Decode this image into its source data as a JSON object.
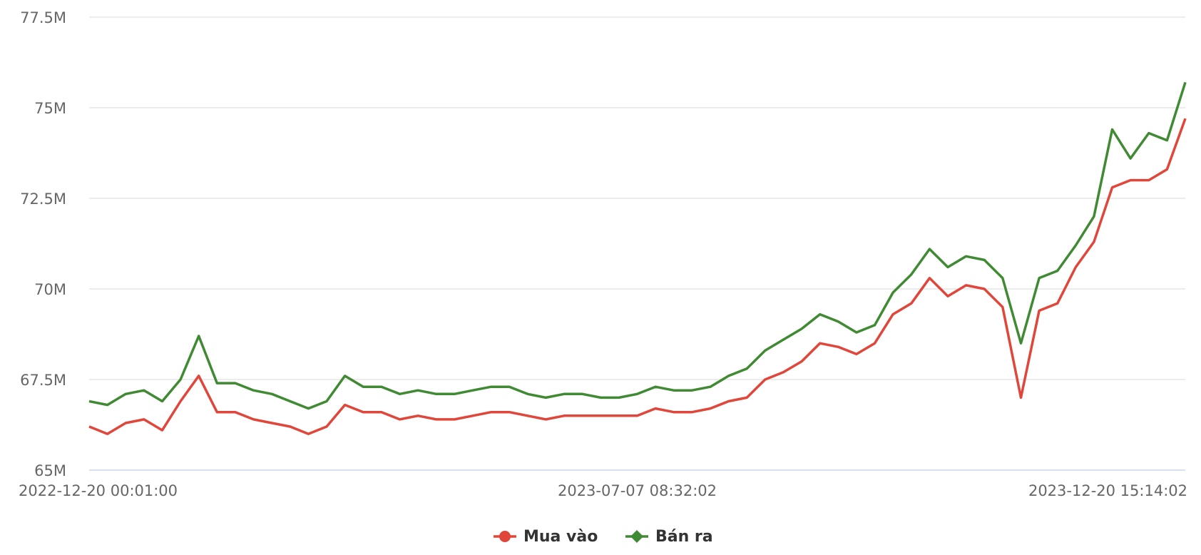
{
  "chart_data": {
    "type": "line",
    "categories": [
      "2022-12-20 00:01:00",
      null,
      null,
      null,
      null,
      null,
      null,
      null,
      null,
      null,
      null,
      null,
      null,
      null,
      null,
      null,
      null,
      null,
      null,
      null,
      null,
      null,
      null,
      null,
      null,
      null,
      null,
      null,
      null,
      null,
      "2023-07-07 08:32:02",
      null,
      null,
      null,
      null,
      null,
      null,
      null,
      null,
      null,
      null,
      null,
      null,
      null,
      null,
      null,
      null,
      null,
      null,
      null,
      null,
      null,
      null,
      null,
      null,
      null,
      null,
      null,
      null,
      null,
      "2023-12-20 15:14:02"
    ],
    "series": [
      {
        "name": "Mua vào",
        "color": "#e0463a",
        "marker": "circle",
        "values": [
          66200000,
          66000000,
          66300000,
          66400000,
          66100000,
          66900000,
          67600000,
          66600000,
          66600000,
          66400000,
          66300000,
          66200000,
          66000000,
          66200000,
          66800000,
          66600000,
          66600000,
          66400000,
          66500000,
          66400000,
          66400000,
          66500000,
          66600000,
          66600000,
          66500000,
          66400000,
          66500000,
          66500000,
          66500000,
          66500000,
          66500000,
          66700000,
          66600000,
          66600000,
          66700000,
          66900000,
          67000000,
          67500000,
          67700000,
          68000000,
          68500000,
          68400000,
          68200000,
          68500000,
          69300000,
          69600000,
          70300000,
          69800000,
          70100000,
          70000000,
          69500000,
          67000000,
          69400000,
          69600000,
          70600000,
          71300000,
          72800000,
          73000000,
          73000000,
          73300000,
          74700000
        ]
      },
      {
        "name": "Bán ra",
        "color": "#3f8a32",
        "marker": "diamond",
        "values": [
          66900000,
          66800000,
          67100000,
          67200000,
          66900000,
          67500000,
          68700000,
          67400000,
          67400000,
          67200000,
          67100000,
          66900000,
          66700000,
          66900000,
          67600000,
          67300000,
          67300000,
          67100000,
          67200000,
          67100000,
          67100000,
          67200000,
          67300000,
          67300000,
          67100000,
          67000000,
          67100000,
          67100000,
          67000000,
          67000000,
          67100000,
          67300000,
          67200000,
          67200000,
          67300000,
          67600000,
          67800000,
          68300000,
          68600000,
          68900000,
          69300000,
          69100000,
          68800000,
          69000000,
          69900000,
          70400000,
          71100000,
          70600000,
          70900000,
          70800000,
          70300000,
          68500000,
          70300000,
          70500000,
          71200000,
          72000000,
          74400000,
          73600000,
          74300000,
          74100000,
          75700000
        ]
      }
    ],
    "ylim": [
      65000000,
      77500000
    ],
    "yticks": [
      {
        "value": 65000000,
        "label": "65M"
      },
      {
        "value": 67500000,
        "label": "67.5M"
      },
      {
        "value": 70000000,
        "label": "70M"
      },
      {
        "value": 72500000,
        "label": "72.5M"
      },
      {
        "value": 75000000,
        "label": "75M"
      },
      {
        "value": 77500000,
        "label": "77.5M"
      }
    ],
    "grid": true
  }
}
